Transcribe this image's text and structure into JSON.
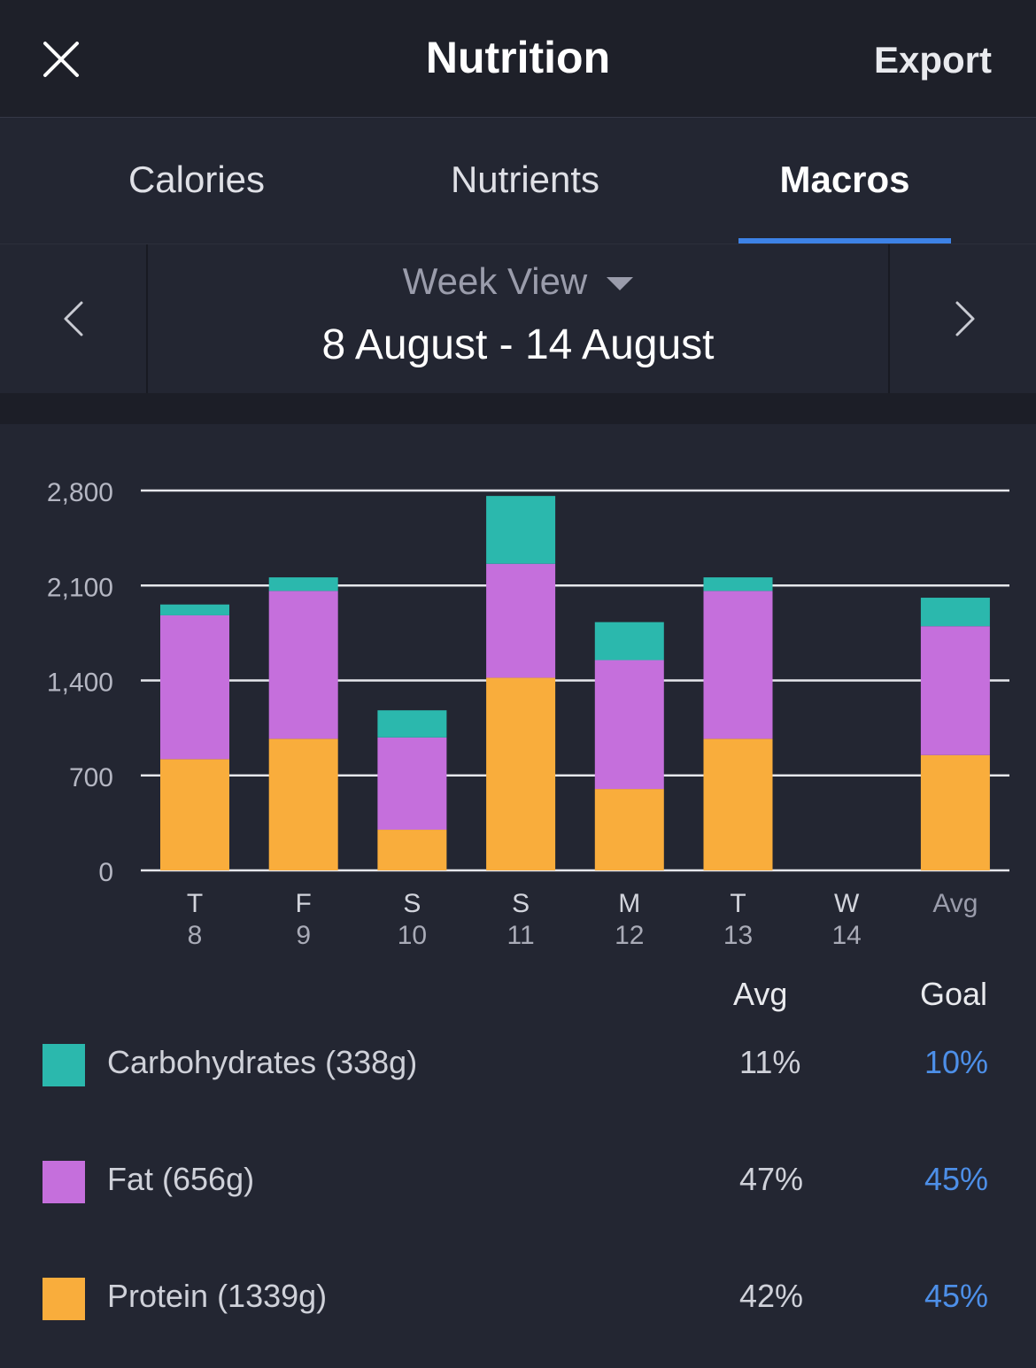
{
  "header": {
    "title": "Nutrition",
    "export_label": "Export",
    "close_icon": "close-icon"
  },
  "tabs": [
    {
      "label": "Calories",
      "active": false
    },
    {
      "label": "Nutrients",
      "active": false
    },
    {
      "label": "Macros",
      "active": true
    }
  ],
  "range": {
    "view_label": "Week View",
    "dates": "8 August - 14 August"
  },
  "colors": {
    "carbohydrates": "#2bb8ad",
    "fat": "#c56fdc",
    "protein": "#f9ad3c",
    "accent": "#3d82e6"
  },
  "chart_data": {
    "type": "bar",
    "stacked": true,
    "categories": [
      {
        "day": "T",
        "date": "8"
      },
      {
        "day": "F",
        "date": "9"
      },
      {
        "day": "S",
        "date": "10"
      },
      {
        "day": "S",
        "date": "11"
      },
      {
        "day": "M",
        "date": "12"
      },
      {
        "day": "T",
        "date": "13"
      },
      {
        "day": "W",
        "date": "14"
      },
      {
        "day": "Avg",
        "date": ""
      }
    ],
    "series": [
      {
        "name": "Protein",
        "color": "#f9ad3c",
        "values": [
          820,
          970,
          300,
          1420,
          600,
          970,
          0,
          850
        ]
      },
      {
        "name": "Fat",
        "color": "#c56fdc",
        "values": [
          1060,
          1090,
          680,
          840,
          950,
          1090,
          0,
          950
        ]
      },
      {
        "name": "Carbohydrates",
        "color": "#2bb8ad",
        "values": [
          80,
          100,
          200,
          500,
          280,
          100,
          0,
          210
        ]
      }
    ],
    "yticks": [
      "0",
      "700",
      "1,400",
      "2,100",
      "2,800"
    ],
    "ylim": [
      0,
      2800
    ],
    "grid": true
  },
  "legend": {
    "avg_header": "Avg",
    "goal_header": "Goal",
    "rows": [
      {
        "label": "Carbohydrates (338g)",
        "avg": "11%",
        "goal": "10%",
        "color": "#2bb8ad"
      },
      {
        "label": "Fat (656g)",
        "avg": "47%",
        "goal": "45%",
        "color": "#c56fdc"
      },
      {
        "label": "Protein (1339g)",
        "avg": "42%",
        "goal": "45%",
        "color": "#f9ad3c"
      }
    ]
  }
}
